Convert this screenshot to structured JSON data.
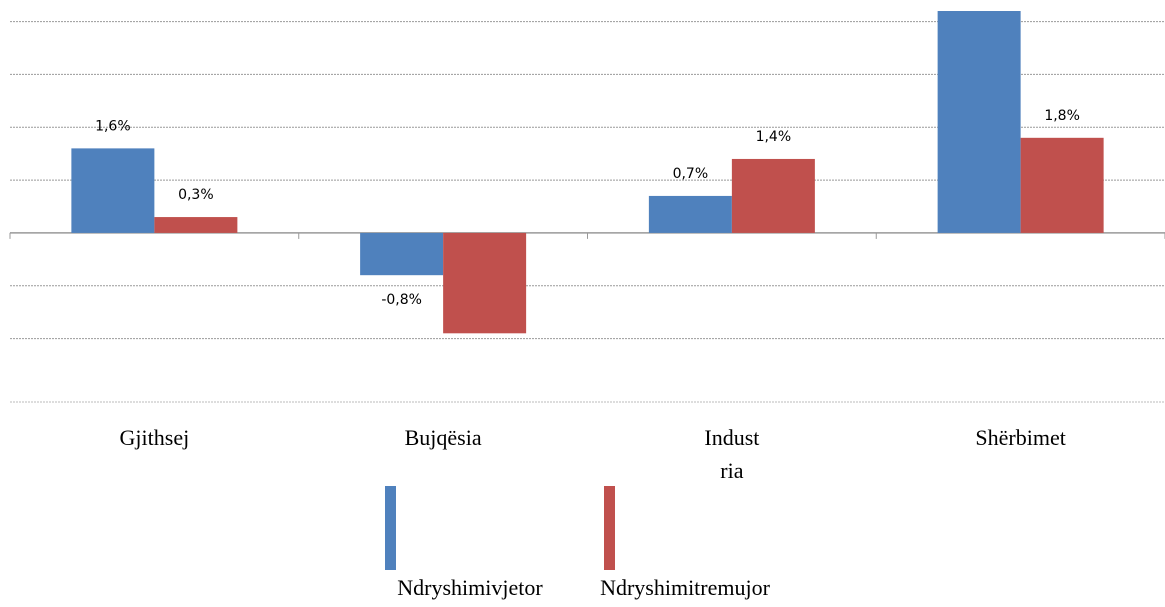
{
  "chart_data": {
    "type": "bar",
    "categories": [
      "Gjithsej",
      "Bujqësia",
      "Indust ria",
      "Shërbimet"
    ],
    "series": [
      {
        "name": "Ndryshimivjetor",
        "color": "#4f81bd",
        "values": [
          1.6,
          -0.8,
          0.7,
          4.2
        ],
        "value_labels": [
          "1,6%",
          "-0,8%",
          "0,7%",
          null
        ]
      },
      {
        "name": "Ndryshimitremujor",
        "color": "#c0504d",
        "values": [
          0.3,
          -1.9,
          1.4,
          1.8
        ],
        "value_labels": [
          "0,3%",
          null,
          "1,4%",
          "1,8%"
        ]
      }
    ],
    "ylim": [
      -3.2,
      4.2
    ],
    "yticks": [
      -2,
      -1,
      0,
      1,
      2,
      3,
      4
    ],
    "grid": true
  }
}
